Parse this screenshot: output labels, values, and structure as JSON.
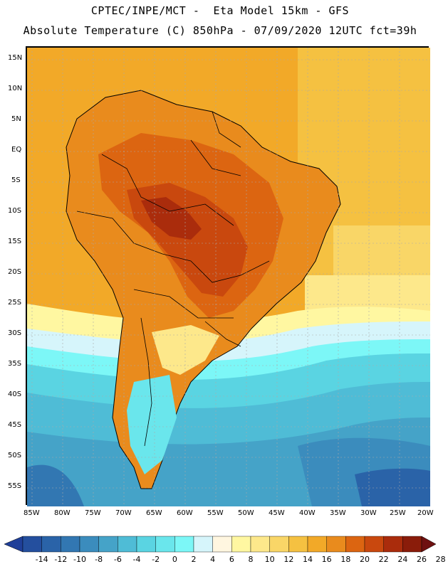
{
  "header": {
    "line1": "CPTEC/INPE/MCT -  Eta Model 15km - GFS",
    "line2": "Absolute Temperature (C) 850hPa - 07/09/2020 12UTC fct=39h"
  },
  "map": {
    "region": "South America",
    "lat_labels": [
      "15N",
      "10N",
      "5N",
      "EQ",
      "5S",
      "10S",
      "15S",
      "20S",
      "25S",
      "30S",
      "35S",
      "40S",
      "45S",
      "50S",
      "55S"
    ],
    "lon_labels": [
      "85W",
      "80W",
      "75W",
      "70W",
      "65W",
      "60W",
      "55W",
      "50W",
      "45W",
      "40W",
      "35W",
      "30W",
      "25W",
      "20W"
    ]
  },
  "colorbar": {
    "labels": [
      "-14",
      "-12",
      "-10",
      "-8",
      "-6",
      "-4",
      "-2",
      "0",
      "2",
      "4",
      "6",
      "8",
      "10",
      "12",
      "14",
      "16",
      "18",
      "20",
      "22",
      "24",
      "26",
      "28"
    ],
    "colors": [
      "#1f3f99",
      "#244f9e",
      "#2a63a8",
      "#3277b2",
      "#3b8cbd",
      "#45a3c8",
      "#4fbcd6",
      "#5ad4e2",
      "#6ae6ec",
      "#7cf7f7",
      "#d6f5fb",
      "#fff6e0",
      "#fff7a1",
      "#fde88b",
      "#f9d667",
      "#f5c141",
      "#f2a928",
      "#e98b1d",
      "#dc6511",
      "#c9480e",
      "#aa2c0c",
      "#8a1c0a",
      "#6e1010"
    ]
  }
}
